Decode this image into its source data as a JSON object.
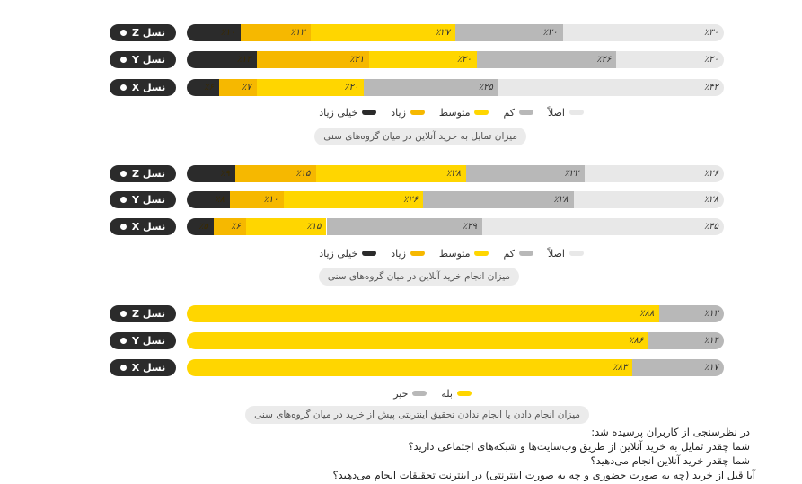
{
  "colors": {
    "asla": "#e8e8e8",
    "kam": "#b8b8b8",
    "motavaset": "#ffd600",
    "ziad": "#f6b800",
    "kheili_ziad": "#2b2b2b",
    "bale": "#ffd600",
    "kheir": "#b8b8b8"
  },
  "legend_5": {
    "asla": "اصلاً",
    "kam": "کم",
    "motavaset": "متوسط",
    "ziad": "زیاد",
    "kheili_ziad": "خیلی زیاد"
  },
  "legend_2": {
    "bale": "بله",
    "kheir": "خیر"
  },
  "chart_data": [
    {
      "type": "bar",
      "orientation": "horizontal",
      "stacked": true,
      "title": "میزان تمایل به خرید آنلاین در میان گروه‌های سنی",
      "categories": [
        "نسل Z",
        "نسل Y",
        "نسل X"
      ],
      "series": [
        {
          "name": "اصلاً",
          "values": [
            30,
            20,
            42
          ],
          "labels": [
            "٪۳۰",
            "٪۲۰",
            "٪۴۲"
          ]
        },
        {
          "name": "کم",
          "values": [
            20,
            26,
            25
          ],
          "labels": [
            "٪۲۰",
            "٪۲۶",
            "٪۲۵"
          ]
        },
        {
          "name": "متوسط",
          "values": [
            27,
            20,
            20
          ],
          "labels": [
            "٪۲۷",
            "٪۲۰",
            "٪۲۰"
          ]
        },
        {
          "name": "زیاد",
          "values": [
            13,
            21,
            7
          ],
          "labels": [
            "٪۱۳",
            "٪۲۱",
            "٪۷"
          ]
        },
        {
          "name": "خیلی زیاد",
          "values": [
            10,
            13,
            6
          ],
          "labels": [
            "٪۱۰",
            "٪۱۳",
            "٪۶"
          ]
        }
      ]
    },
    {
      "type": "bar",
      "orientation": "horizontal",
      "stacked": true,
      "title": "میزان انجام خرید آنلاین در میان گروه‌های سنی",
      "categories": [
        "نسل Z",
        "نسل Y",
        "نسل X"
      ],
      "series": [
        {
          "name": "اصلاً",
          "values": [
            26,
            28,
            45
          ],
          "labels": [
            "٪۲۶",
            "٪۲۸",
            "٪۴۵"
          ]
        },
        {
          "name": "کم",
          "values": [
            22,
            28,
            29
          ],
          "labels": [
            "٪۲۲",
            "٪۲۸",
            "٪۲۹"
          ]
        },
        {
          "name": "متوسط",
          "values": [
            28,
            26,
            15
          ],
          "labels": [
            "٪۲۸",
            "٪۲۶",
            "٪۱۵"
          ]
        },
        {
          "name": "زیاد",
          "values": [
            15,
            10,
            6
          ],
          "labels": [
            "٪۱۵",
            "٪۱۰",
            "٪۶"
          ]
        },
        {
          "name": "خیلی زیاد",
          "values": [
            9,
            8,
            5
          ],
          "labels": [
            "٪۹",
            "٪۸",
            "٪۵"
          ]
        }
      ]
    },
    {
      "type": "bar",
      "orientation": "horizontal",
      "stacked": true,
      "title": "میزان انجام دادن یا انجام ندادن تحقیق اینترنتی پیش از خرید در میان گروه‌های سنی",
      "categories": [
        "نسل Z",
        "نسل Y",
        "نسل X"
      ],
      "series": [
        {
          "name": "خیر",
          "values": [
            12,
            14,
            17
          ],
          "labels": [
            "٪۱۲",
            "٪۱۴",
            "٪۱۷"
          ]
        },
        {
          "name": "بله",
          "values": [
            88,
            86,
            83
          ],
          "labels": [
            "٪۸۸",
            "٪۸۶",
            "٪۸۳"
          ]
        }
      ]
    }
  ],
  "survey_notes": [
    "در نظرسنجی از کاربران پرسیده شد:",
    "شما چقدر تمایل به خرید آنلاین از طریق وب‌سایت‌ها و شبکه‌های اجتماعی دارید؟",
    "شما چقدر خرید آنلاین انجام می‌دهید؟",
    "آیا قبل از خرید (چه به صورت حضوری و چه به صورت اینترنتی) در اینترنت تحقیقات انجام می‌دهید؟"
  ]
}
